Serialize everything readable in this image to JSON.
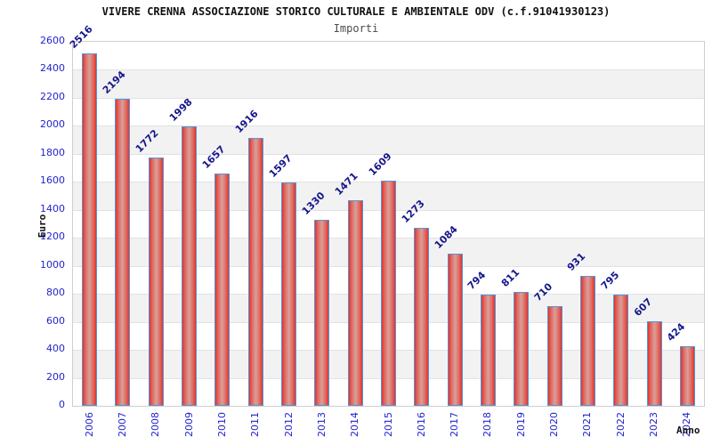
{
  "header": {
    "title": "VIVERE CRENNA ASSOCIAZIONE STORICO CULTURALE E AMBIENTALE ODV (c.f.91041930123)",
    "subtitle": "Importi"
  },
  "axes": {
    "y_label": "Euro",
    "x_label": "Anno"
  },
  "colors": {
    "tick_label": "#2323cd",
    "value_label": "#16168c",
    "bar_edge": "#e5332c",
    "bar_center": "#d9a09a",
    "bar_border": "#4f97d9",
    "band_gray": "#f2f2f2",
    "gridline": "#e2e2e2",
    "frame": "#cfcfcf",
    "title": "#111111",
    "subtitle": "#4d4d4d"
  },
  "chart_data": {
    "type": "bar",
    "title": "VIVERE CRENNA ASSOCIAZIONE STORICO CULTURALE E AMBIENTALE ODV (c.f.91041930123)",
    "subtitle": "Importi",
    "xlabel": "Anno",
    "ylabel": "Euro",
    "categories": [
      "2006",
      "2007",
      "2008",
      "2009",
      "2010",
      "2011",
      "2012",
      "2013",
      "2014",
      "2015",
      "2016",
      "2017",
      "2018",
      "2019",
      "2020",
      "2021",
      "2022",
      "2023",
      "2024"
    ],
    "values": [
      2516,
      2194,
      1772,
      1998,
      1657,
      1916,
      1597,
      1330,
      1471,
      1609,
      1273,
      1084,
      794,
      811,
      710,
      931,
      795,
      607,
      424
    ],
    "ylim": [
      0,
      2600
    ],
    "ytick_step": 200,
    "grid": "horizontal-bands-alternating-200",
    "legend": "none",
    "bar_value_labels": "rotated-45-above-bars",
    "x_tick_labels": "rotated-90-vertical"
  }
}
